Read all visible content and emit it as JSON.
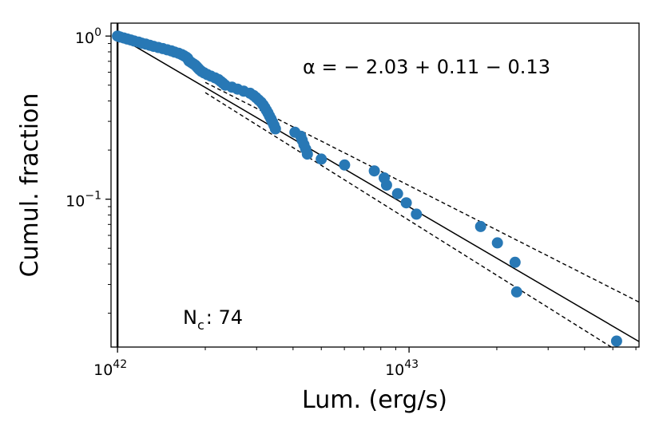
{
  "chart_data": {
    "type": "scatter",
    "scale": {
      "x": "log",
      "y": "log"
    },
    "xlim": [
      9.5e+41,
      6.15e+43
    ],
    "ylim": [
      0.0124,
      1.2
    ],
    "xlabel": "Lum.  (erg/s)",
    "ylabel": "Cumul.  fraction",
    "x_ticks": [
      {
        "value": 1e+42,
        "label": "10",
        "exp": "42"
      },
      {
        "value": 1e+43,
        "label": "10",
        "exp": "43"
      }
    ],
    "y_ticks": [
      {
        "value": 1.0,
        "label": "10",
        "exp": "0"
      },
      {
        "value": 0.1,
        "label": "10",
        "exp": "−1"
      }
    ],
    "annotation_alpha": "α = − 2.03  + 0.11  − 0.13",
    "annotation_nc": {
      "label": "N",
      "sub": "c",
      "value": ":  74"
    },
    "threshold_x": 1e+42,
    "points": [
      [
        1e+42,
        1.0
      ],
      [
        1.02e+42,
        0.986
      ],
      [
        1.05e+42,
        0.973
      ],
      [
        1.08e+42,
        0.959
      ],
      [
        1.11e+42,
        0.946
      ],
      [
        1.14e+42,
        0.932
      ],
      [
        1.18e+42,
        0.919
      ],
      [
        1.21e+42,
        0.905
      ],
      [
        1.25e+42,
        0.892
      ],
      [
        1.29e+42,
        0.878
      ],
      [
        1.33e+42,
        0.865
      ],
      [
        1.38e+42,
        0.851
      ],
      [
        1.43e+42,
        0.838
      ],
      [
        1.48e+42,
        0.824
      ],
      [
        1.53e+42,
        0.811
      ],
      [
        1.57e+42,
        0.797
      ],
      [
        1.62e+42,
        0.784
      ],
      [
        1.66e+42,
        0.77
      ],
      [
        1.69e+42,
        0.757
      ],
      [
        1.72e+42,
        0.743
      ],
      [
        1.74e+42,
        0.73
      ],
      [
        1.75e+42,
        0.716
      ],
      [
        1.76e+42,
        0.703
      ],
      [
        1.79e+42,
        0.689
      ],
      [
        1.82e+42,
        0.676
      ],
      [
        1.85e+42,
        0.662
      ],
      [
        1.87e+42,
        0.649
      ],
      [
        1.89e+42,
        0.635
      ],
      [
        1.91e+42,
        0.622
      ],
      [
        1.94e+42,
        0.608
      ],
      [
        1.98e+42,
        0.595
      ],
      [
        2.03e+42,
        0.581
      ],
      [
        2.09e+42,
        0.568
      ],
      [
        2.16e+42,
        0.554
      ],
      [
        2.22e+42,
        0.541
      ],
      [
        2.26e+42,
        0.527
      ],
      [
        2.3e+42,
        0.514
      ],
      [
        2.34e+42,
        0.5
      ],
      [
        2.47e+42,
        0.486
      ],
      [
        2.58e+42,
        0.473
      ],
      [
        2.71e+42,
        0.459
      ],
      [
        2.85e+42,
        0.446
      ],
      [
        2.93e+42,
        0.432
      ],
      [
        2.99e+42,
        0.419
      ],
      [
        3.05e+42,
        0.405
      ],
      [
        3.11e+42,
        0.392
      ],
      [
        3.16e+42,
        0.378
      ],
      [
        3.2e+42,
        0.365
      ],
      [
        3.24e+42,
        0.351
      ],
      [
        3.28e+42,
        0.338
      ],
      [
        3.32e+42,
        0.324
      ],
      [
        3.36e+42,
        0.311
      ],
      [
        3.4e+42,
        0.297
      ],
      [
        3.44e+42,
        0.284
      ],
      [
        3.48e+42,
        0.27
      ],
      [
        4.06e+42,
        0.257
      ],
      [
        4.25e+42,
        0.243
      ],
      [
        4.3e+42,
        0.23
      ],
      [
        4.36e+42,
        0.216
      ],
      [
        4.42e+42,
        0.203
      ],
      [
        4.48e+42,
        0.189
      ],
      [
        5e+42,
        0.176
      ],
      [
        6.01e+42,
        0.162
      ],
      [
        7.6e+42,
        0.149
      ],
      [
        8.22e+42,
        0.135
      ],
      [
        8.37e+42,
        0.122
      ],
      [
        9.13e+42,
        0.108
      ],
      [
        9.78e+42,
        0.095
      ],
      [
        1.06e+43,
        0.081
      ],
      [
        1.76e+43,
        0.068
      ],
      [
        2.01e+43,
        0.054
      ],
      [
        2.31e+43,
        0.041
      ],
      [
        2.34e+43,
        0.027
      ],
      [
        5.15e+43,
        0.0135
      ]
    ],
    "fit_line": {
      "alpha": -2.03,
      "x": [
        1e+42,
        6.15e+43
      ],
      "y": [
        1.0,
        0.0134
      ]
    },
    "err_upper": {
      "alpha": -1.92,
      "x": [
        2e+42,
        6.15e+43
      ],
      "y": [
        0.52,
        0.0234
      ]
    },
    "err_lower": {
      "alpha": -2.16,
      "x": [
        2e+42,
        6.15e+43
      ],
      "y": [
        0.45,
        0.0097
      ]
    },
    "colors": {
      "points": "#2878b5",
      "lines": "#000000"
    },
    "grid": false,
    "legend": "none"
  }
}
